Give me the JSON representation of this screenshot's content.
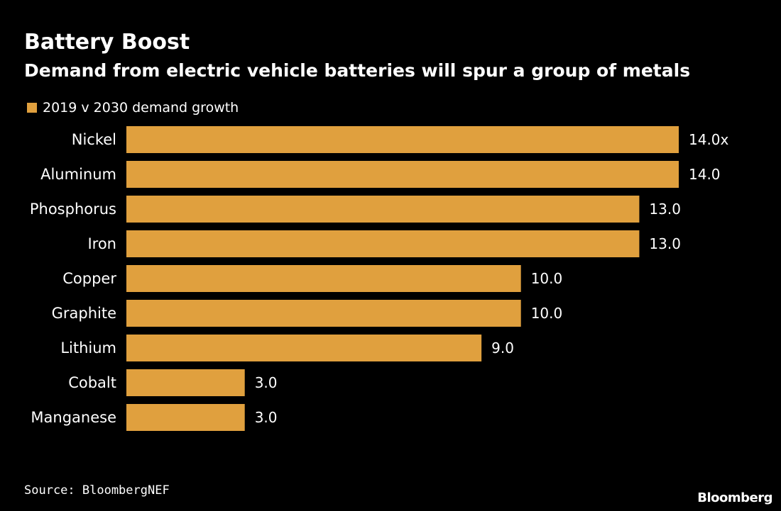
{
  "colors": {
    "background": "#000000",
    "bar": "#E0A03E",
    "text": "#FFFFFF"
  },
  "chart_data": {
    "type": "bar",
    "orientation": "horizontal",
    "title": "Battery Boost",
    "subtitle": "Demand from electric vehicle batteries will spur a group of metals",
    "legend": {
      "position": "top-left",
      "entries": [
        "2019 v 2030 demand growth"
      ]
    },
    "categories": [
      "Nickel",
      "Aluminum",
      "Phosphorus",
      "Iron",
      "Copper",
      "Graphite",
      "Lithium",
      "Cobalt",
      "Manganese"
    ],
    "series": [
      {
        "name": "2019 v 2030 demand growth",
        "values": [
          14.0,
          14.0,
          13.0,
          13.0,
          10.0,
          10.0,
          9.0,
          3.0,
          3.0
        ]
      }
    ],
    "value_labels": [
      "14.0x",
      "14.0",
      "13.0",
      "13.0",
      "10.0",
      "10.0",
      "9.0",
      "3.0",
      "3.0"
    ],
    "xlim": [
      0,
      14
    ],
    "grid": false
  },
  "footer": {
    "source": "Source: BloombergNEF",
    "brand": "Bloomberg"
  }
}
